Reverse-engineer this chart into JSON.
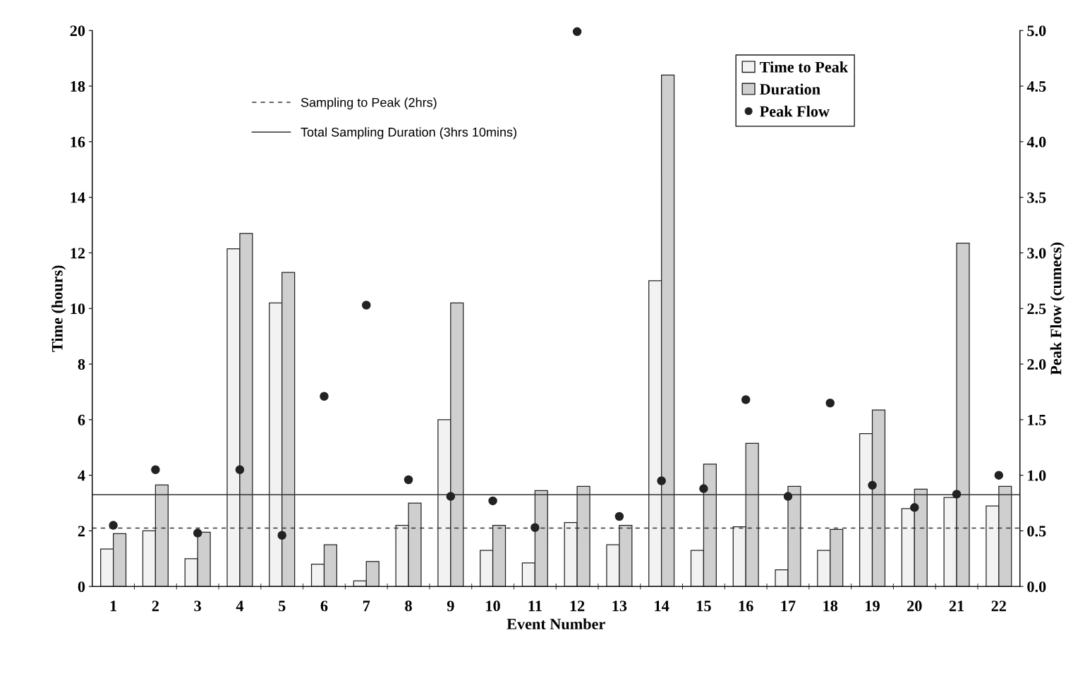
{
  "chart_data": {
    "type": "bar",
    "xlabel": "Event Number",
    "ylabel": "Time (hours)",
    "y2label": "Peak Flow (cumecs)",
    "categories": [
      "1",
      "2",
      "3",
      "4",
      "5",
      "6",
      "7",
      "8",
      "9",
      "10",
      "11",
      "12",
      "13",
      "14",
      "15",
      "16",
      "17",
      "18",
      "19",
      "20",
      "21",
      "22"
    ],
    "series": [
      {
        "name": "Time to Peak",
        "color": "#f2f2f2",
        "values": [
          1.35,
          2.0,
          1.0,
          12.15,
          10.2,
          0.8,
          0.2,
          2.2,
          6.0,
          1.3,
          0.85,
          2.3,
          1.5,
          11.0,
          1.3,
          2.15,
          0.6,
          1.3,
          5.5,
          2.8,
          3.2,
          2.9
        ]
      },
      {
        "name": "Duration",
        "color": "#cfcfcf",
        "values": [
          1.9,
          3.65,
          1.95,
          12.7,
          11.3,
          1.5,
          0.9,
          3.0,
          10.2,
          2.2,
          3.45,
          3.6,
          2.2,
          18.4,
          4.4,
          5.15,
          3.6,
          2.05,
          6.35,
          3.5,
          12.35,
          3.6
        ]
      },
      {
        "name": "Peak Flow",
        "type": "scatter",
        "axis": "y2",
        "marker": "circle",
        "color": "#222222",
        "values": [
          0.55,
          1.05,
          0.48,
          1.05,
          0.46,
          1.71,
          2.53,
          0.96,
          0.81,
          0.77,
          0.53,
          4.99,
          0.63,
          0.95,
          0.88,
          1.68,
          0.81,
          1.65,
          0.91,
          0.71,
          0.83,
          1.0
        ]
      }
    ],
    "ylim": [
      0,
      20
    ],
    "yticks": [
      0,
      2,
      4,
      6,
      8,
      10,
      12,
      14,
      16,
      18,
      20
    ],
    "y2lim": [
      0,
      5
    ],
    "y2ticks": [
      {
        "value": 0,
        "label": "0.0"
      },
      {
        "value": 0.5,
        "label": "0.5"
      },
      {
        "value": 1,
        "label": "1.0"
      },
      {
        "value": 1.5,
        "label": "1.5"
      },
      {
        "value": 2,
        "label": "2.0"
      },
      {
        "value": 2.5,
        "label": "2.5"
      },
      {
        "value": 3,
        "label": "3.0"
      },
      {
        "value": 3.5,
        "label": "3.5"
      },
      {
        "value": 4,
        "label": "4.0"
      },
      {
        "value": 4.5,
        "label": "4.5"
      },
      {
        "value": 5,
        "label": "5.0"
      }
    ],
    "ref_lines": [
      {
        "axis": "y",
        "value": 2.1,
        "label": "Sampling to Peak (2hrs)",
        "line_style": "dashed",
        "color": "#333333"
      },
      {
        "axis": "y",
        "value": 3.3,
        "label": "Total Sampling Duration (3hrs 10mins)",
        "line_style": "solid",
        "color": "#333333"
      }
    ],
    "legend": "top right",
    "grid": false
  }
}
